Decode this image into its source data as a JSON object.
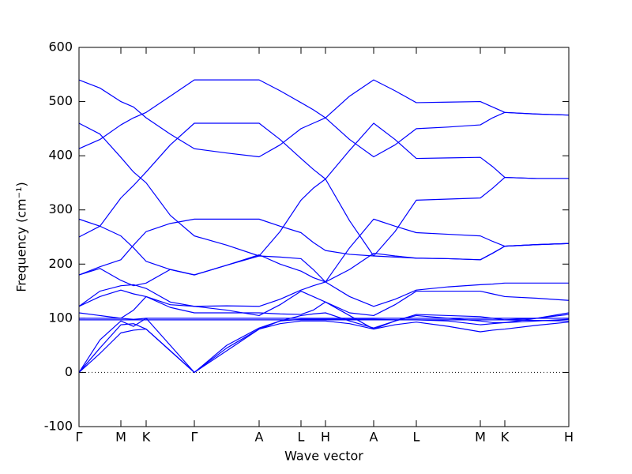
{
  "chart_data": {
    "type": "line",
    "x_label": "Wave vector",
    "y_label": "Frequency (cm⁻¹)",
    "color": "#0000ff",
    "zero_line": true,
    "xlim": [
      0,
      620
    ],
    "ylim": [
      -100,
      600
    ],
    "yticks": [
      -100,
      0,
      100,
      200,
      300,
      400,
      500,
      600
    ],
    "xticks": [
      {
        "value": 0,
        "label": "Γ"
      },
      {
        "value": 53,
        "label": "M"
      },
      {
        "value": 85,
        "label": "K"
      },
      {
        "value": 146,
        "label": "Γ"
      },
      {
        "value": 228,
        "label": "A"
      },
      {
        "value": 281,
        "label": "L"
      },
      {
        "value": 312,
        "label": "H"
      },
      {
        "value": 373,
        "label": "A"
      },
      {
        "value": 427,
        "label": "L"
      },
      {
        "value": 508,
        "label": "M"
      },
      {
        "value": 539,
        "label": "K"
      },
      {
        "value": 620,
        "label": "H"
      }
    ],
    "x": [
      0,
      26.5,
      53,
      69,
      85,
      115.5,
      146,
      187,
      228,
      254.5,
      281,
      296.5,
      312,
      342.5,
      373,
      400,
      427,
      467.5,
      508,
      523.5,
      539,
      579.5,
      620
    ],
    "series": [
      {
        "values": [
          540,
          525,
          500,
          490,
          470,
          440,
          413,
          405,
          398,
          420,
          450,
          460,
          470,
          510,
          540,
          520,
          498,
          499,
          500,
          490,
          480,
          477,
          475
        ]
      },
      {
        "values": [
          413,
          430,
          457,
          470,
          480,
          510,
          540,
          540,
          540,
          520,
          498,
          485,
          470,
          430,
          398,
          420,
          450,
          453,
          457,
          470,
          480,
          477,
          475
        ]
      },
      {
        "values": [
          460,
          440,
          397,
          370,
          350,
          290,
          252,
          235,
          215,
          260,
          318,
          340,
          357,
          410,
          460,
          430,
          395,
          396,
          397,
          380,
          360,
          358,
          358
        ]
      },
      {
        "values": [
          250,
          270,
          322,
          345,
          370,
          420,
          460,
          460,
          460,
          430,
          395,
          375,
          357,
          280,
          215,
          260,
          318,
          320,
          322,
          340,
          360,
          358,
          358
        ]
      },
      {
        "values": [
          283,
          270,
          252,
          230,
          205,
          190,
          180,
          198,
          215,
          213,
          210,
          190,
          167,
          230,
          283,
          270,
          258,
          255,
          252,
          242,
          233,
          236,
          238
        ]
      },
      {
        "values": [
          180,
          195,
          208,
          235,
          260,
          275,
          283,
          283,
          283,
          270,
          258,
          240,
          225,
          218,
          215,
          213,
          211,
          210,
          208,
          220,
          233,
          236,
          238
        ]
      },
      {
        "values": [
          180,
          192,
          170,
          160,
          165,
          190,
          180,
          198,
          217,
          200,
          187,
          175,
          167,
          190,
          220,
          215,
          211,
          210,
          208,
          220,
          233,
          236,
          238
        ]
      },
      {
        "values": [
          122,
          150,
          160,
          162,
          155,
          130,
          122,
          123,
          122,
          135,
          152,
          160,
          167,
          140,
          122,
          135,
          152,
          158,
          162,
          163,
          165,
          165,
          165
        ]
      },
      {
        "values": [
          122,
          140,
          152,
          145,
          140,
          125,
          122,
          115,
          105,
          125,
          150,
          140,
          130,
          110,
          105,
          125,
          150,
          150,
          150,
          145,
          140,
          137,
          133
        ]
      },
      {
        "values": [
          110,
          105,
          100,
          115,
          140,
          120,
          110,
          110,
          110,
          108,
          107,
          115,
          130,
          105,
          80,
          95,
          107,
          105,
          103,
          100,
          97,
          100,
          110
        ]
      },
      {
        "values": [
          100,
          100,
          100,
          98,
          100,
          100,
          100,
          100,
          100,
          100,
          100,
          100,
          100,
          100,
          100,
          100,
          100,
          100,
          100,
          100,
          100,
          100,
          100
        ]
      },
      {
        "values": [
          97,
          97,
          97,
          97,
          97,
          97,
          97,
          97,
          97,
          97,
          97,
          97,
          97,
          97,
          97,
          97,
          97,
          97,
          97,
          97,
          97,
          96,
          95
        ]
      },
      {
        "values": [
          0,
          60,
          95,
          85,
          100,
          50,
          0,
          50,
          82,
          95,
          105,
          108,
          110,
          95,
          82,
          95,
          105,
          100,
          95,
          92,
          92,
          100,
          107
        ]
      },
      {
        "values": [
          0,
          45,
          88,
          90,
          80,
          40,
          0,
          45,
          80,
          90,
          95,
          95,
          95,
          90,
          80,
          88,
          93,
          85,
          75,
          78,
          80,
          87,
          93
        ]
      },
      {
        "values": [
          0,
          35,
          73,
          78,
          80,
          40,
          0,
          40,
          80,
          95,
          98,
          98,
          98,
          98,
          98,
          97,
          97,
          95,
          88,
          90,
          92,
          95,
          98
        ]
      }
    ]
  }
}
